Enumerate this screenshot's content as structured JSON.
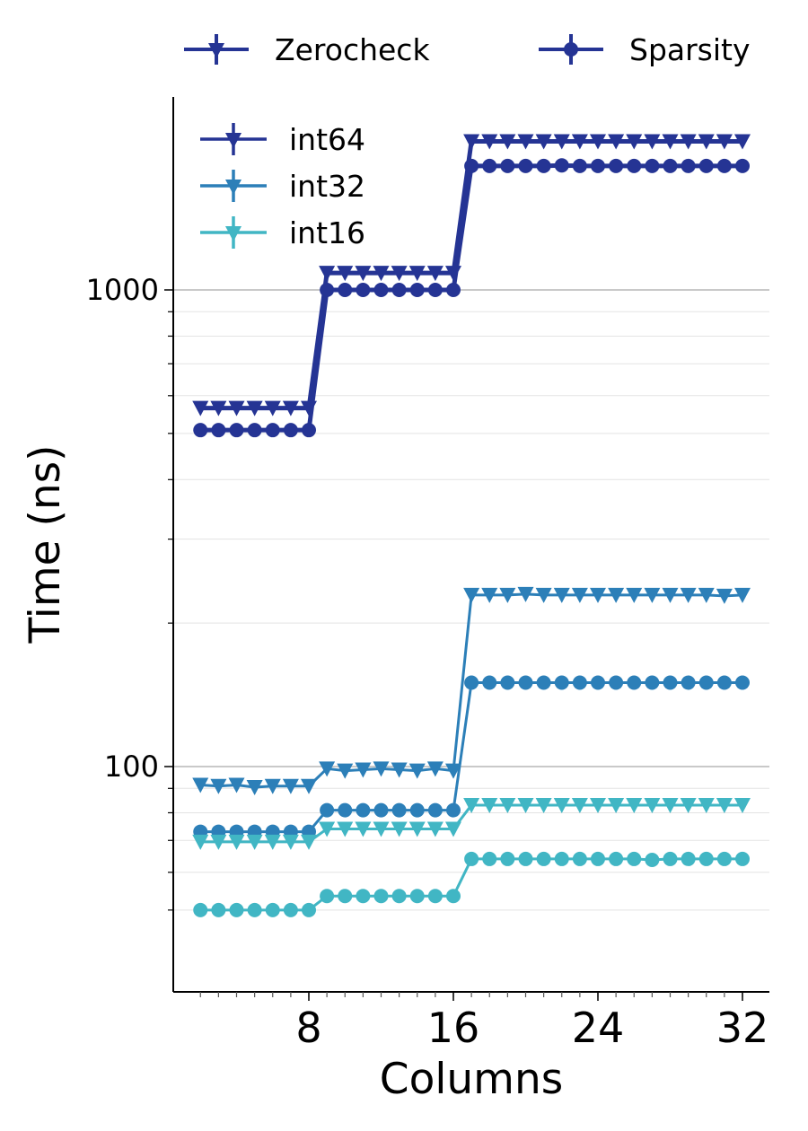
{
  "chart_data": {
    "type": "line",
    "xlabel": "Columns",
    "ylabel": "Time (ns)",
    "yscale": "log",
    "xlim": [
      0.5,
      33
    ],
    "ylim": [
      45,
      1900
    ],
    "xticks": [
      8,
      16,
      24,
      32
    ],
    "xtick_labels": [
      "8",
      "16",
      "24",
      "32"
    ],
    "yticks": [
      100,
      1000
    ],
    "ytick_labels": [
      "100",
      "1000"
    ],
    "grid": "y (major and minor)",
    "metric_legend": {
      "placement": "top, outside plot",
      "entries": [
        {
          "label": "Zerocheck",
          "marker": "triangle-down"
        },
        {
          "label": "Sparsity",
          "marker": "circle"
        }
      ]
    },
    "type_legend": {
      "placement": "top-left",
      "entries": [
        {
          "label": "int64",
          "color": "#253494"
        },
        {
          "label": "int32",
          "color": "#2c7fb8"
        },
        {
          "label": "int16",
          "color": "#41b6c4"
        }
      ]
    },
    "x": [
      2,
      3,
      4,
      5,
      6,
      7,
      8,
      9,
      10,
      11,
      12,
      13,
      14,
      15,
      16,
      17,
      18,
      19,
      20,
      21,
      22,
      23,
      24,
      25,
      26,
      27,
      28,
      29,
      30,
      31,
      32
    ],
    "series": [
      {
        "type": "int64",
        "metric": "Zerocheck",
        "color": "#253494",
        "marker": "triangle-down",
        "values": [
          565,
          565,
          565,
          565,
          565,
          565,
          565,
          1085,
          1085,
          1085,
          1085,
          1085,
          1085,
          1085,
          1085,
          2050,
          2050,
          2050,
          2050,
          2050,
          2050,
          2050,
          2050,
          2050,
          2050,
          2050,
          2050,
          2050,
          2050,
          2050,
          2050
        ]
      },
      {
        "type": "int64",
        "metric": "Sparsity",
        "color": "#253494",
        "marker": "circle",
        "values": [
          508,
          508,
          508,
          508,
          508,
          508,
          508,
          1000,
          1000,
          1000,
          1000,
          1000,
          1000,
          1000,
          1000,
          1820,
          1820,
          1820,
          1820,
          1820,
          1825,
          1820,
          1820,
          1820,
          1820,
          1820,
          1820,
          1820,
          1820,
          1820,
          1820
        ]
      },
      {
        "type": "int32",
        "metric": "Zerocheck",
        "color": "#2c7fb8",
        "marker": "triangle-down",
        "values": [
          91.5,
          91,
          91.5,
          90.5,
          91,
          91,
          91,
          99,
          98,
          98.5,
          99,
          98.5,
          98,
          99,
          98,
          229,
          229,
          229,
          230,
          229,
          229,
          229,
          229,
          229,
          229,
          229,
          229,
          229,
          229,
          228,
          229
        ]
      },
      {
        "type": "int32",
        "metric": "Sparsity",
        "color": "#2c7fb8",
        "marker": "circle",
        "values": [
          73,
          73,
          73,
          73,
          73,
          73,
          73,
          81,
          81,
          81,
          81,
          81,
          81,
          81,
          81,
          150,
          150,
          150,
          150,
          150,
          150,
          150,
          150,
          150,
          150,
          150,
          150,
          150,
          150,
          150,
          150
        ]
      },
      {
        "type": "int16",
        "metric": "Zerocheck",
        "color": "#41b6c4",
        "marker": "triangle-down",
        "values": [
          69.5,
          69.5,
          69.5,
          69.5,
          69.5,
          69.5,
          69.5,
          74,
          74,
          74,
          74,
          74,
          74,
          74,
          74,
          83,
          83,
          83,
          83,
          83,
          83,
          83,
          83,
          83,
          83,
          83,
          83,
          83,
          83,
          83,
          83
        ]
      },
      {
        "type": "int16",
        "metric": "Sparsity",
        "color": "#41b6c4",
        "marker": "circle",
        "values": [
          50,
          50,
          50,
          50,
          50,
          50,
          50,
          53.5,
          53.5,
          53.5,
          53.5,
          53.5,
          53.5,
          53.5,
          53.5,
          64,
          64,
          64,
          64,
          64,
          64,
          64,
          64,
          64,
          64,
          63.7,
          64,
          64,
          64,
          64,
          64
        ]
      }
    ]
  }
}
